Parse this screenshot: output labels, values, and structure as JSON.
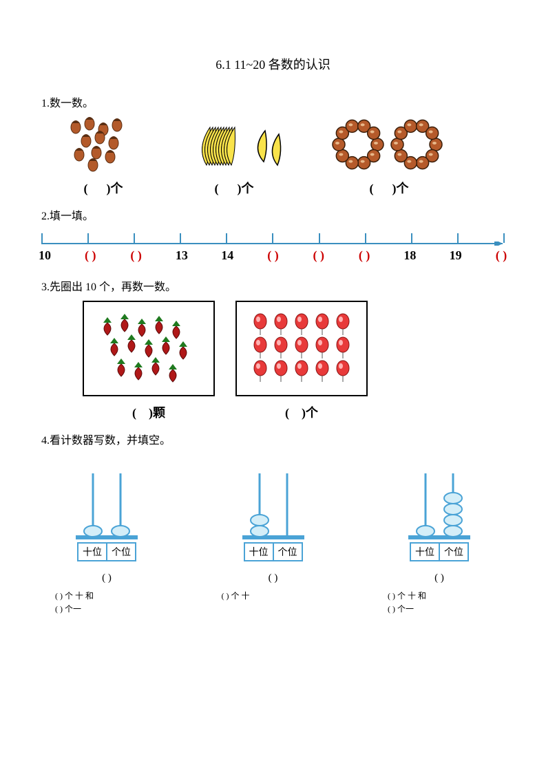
{
  "title": "6.1   11~20 各数的认识",
  "q1": {
    "prompt": "1.数一数。",
    "suffix": "个",
    "items": [
      {
        "name": "acorns",
        "count": 11,
        "fill": "#b35a2a",
        "stroke": "#5a2e12"
      },
      {
        "name": "bananas",
        "count": 12,
        "fill": "#f9e34a",
        "stroke": "#000"
      },
      {
        "name": "beads",
        "count": 20,
        "per_ring": 10,
        "fill": "#b55a2a",
        "stroke": "#3a1e0a"
      }
    ]
  },
  "q2": {
    "prompt": "2.填一填。",
    "line_color": "#3a8fbf",
    "labels": [
      "10",
      "( )",
      "( )",
      "13",
      "14",
      "( )",
      "( )",
      "( )",
      "18",
      "19",
      "( )"
    ],
    "is_blank": [
      false,
      true,
      true,
      false,
      false,
      true,
      true,
      true,
      false,
      false,
      true
    ],
    "blank_color": "#cc0000",
    "text_color": "#000"
  },
  "q3": {
    "prompt": "3.先圈出 10 个，再数一数。",
    "strawberry": {
      "count": 14,
      "fill": "#b01818",
      "leaf": "#1f7a1f",
      "suffix": "颗"
    },
    "balloons": {
      "count": 15,
      "rows": 3,
      "cols": 5,
      "fill": "#e83a3a",
      "suffix": "个"
    }
  },
  "q4": {
    "prompt": "4.看计数器写数，并填空。",
    "tens_label": "十位",
    "ones_label": "个位",
    "blank_paren": "(        )",
    "line1_a": "(    ) 个 十 和",
    "line2_a": "(    ) 个一",
    "line1_b": "(    ) 个 十",
    "line1_c": "(    ) 个 十 和",
    "line2_c": "(    ) 个一",
    "bead_fill": "#d4eef8",
    "bead_stroke": "#4aa3d6",
    "rod_color": "#4aa3d6",
    "abaci": [
      {
        "tens": 1,
        "ones": 1
      },
      {
        "tens": 2,
        "ones": 0
      },
      {
        "tens": 1,
        "ones": 4
      }
    ]
  }
}
